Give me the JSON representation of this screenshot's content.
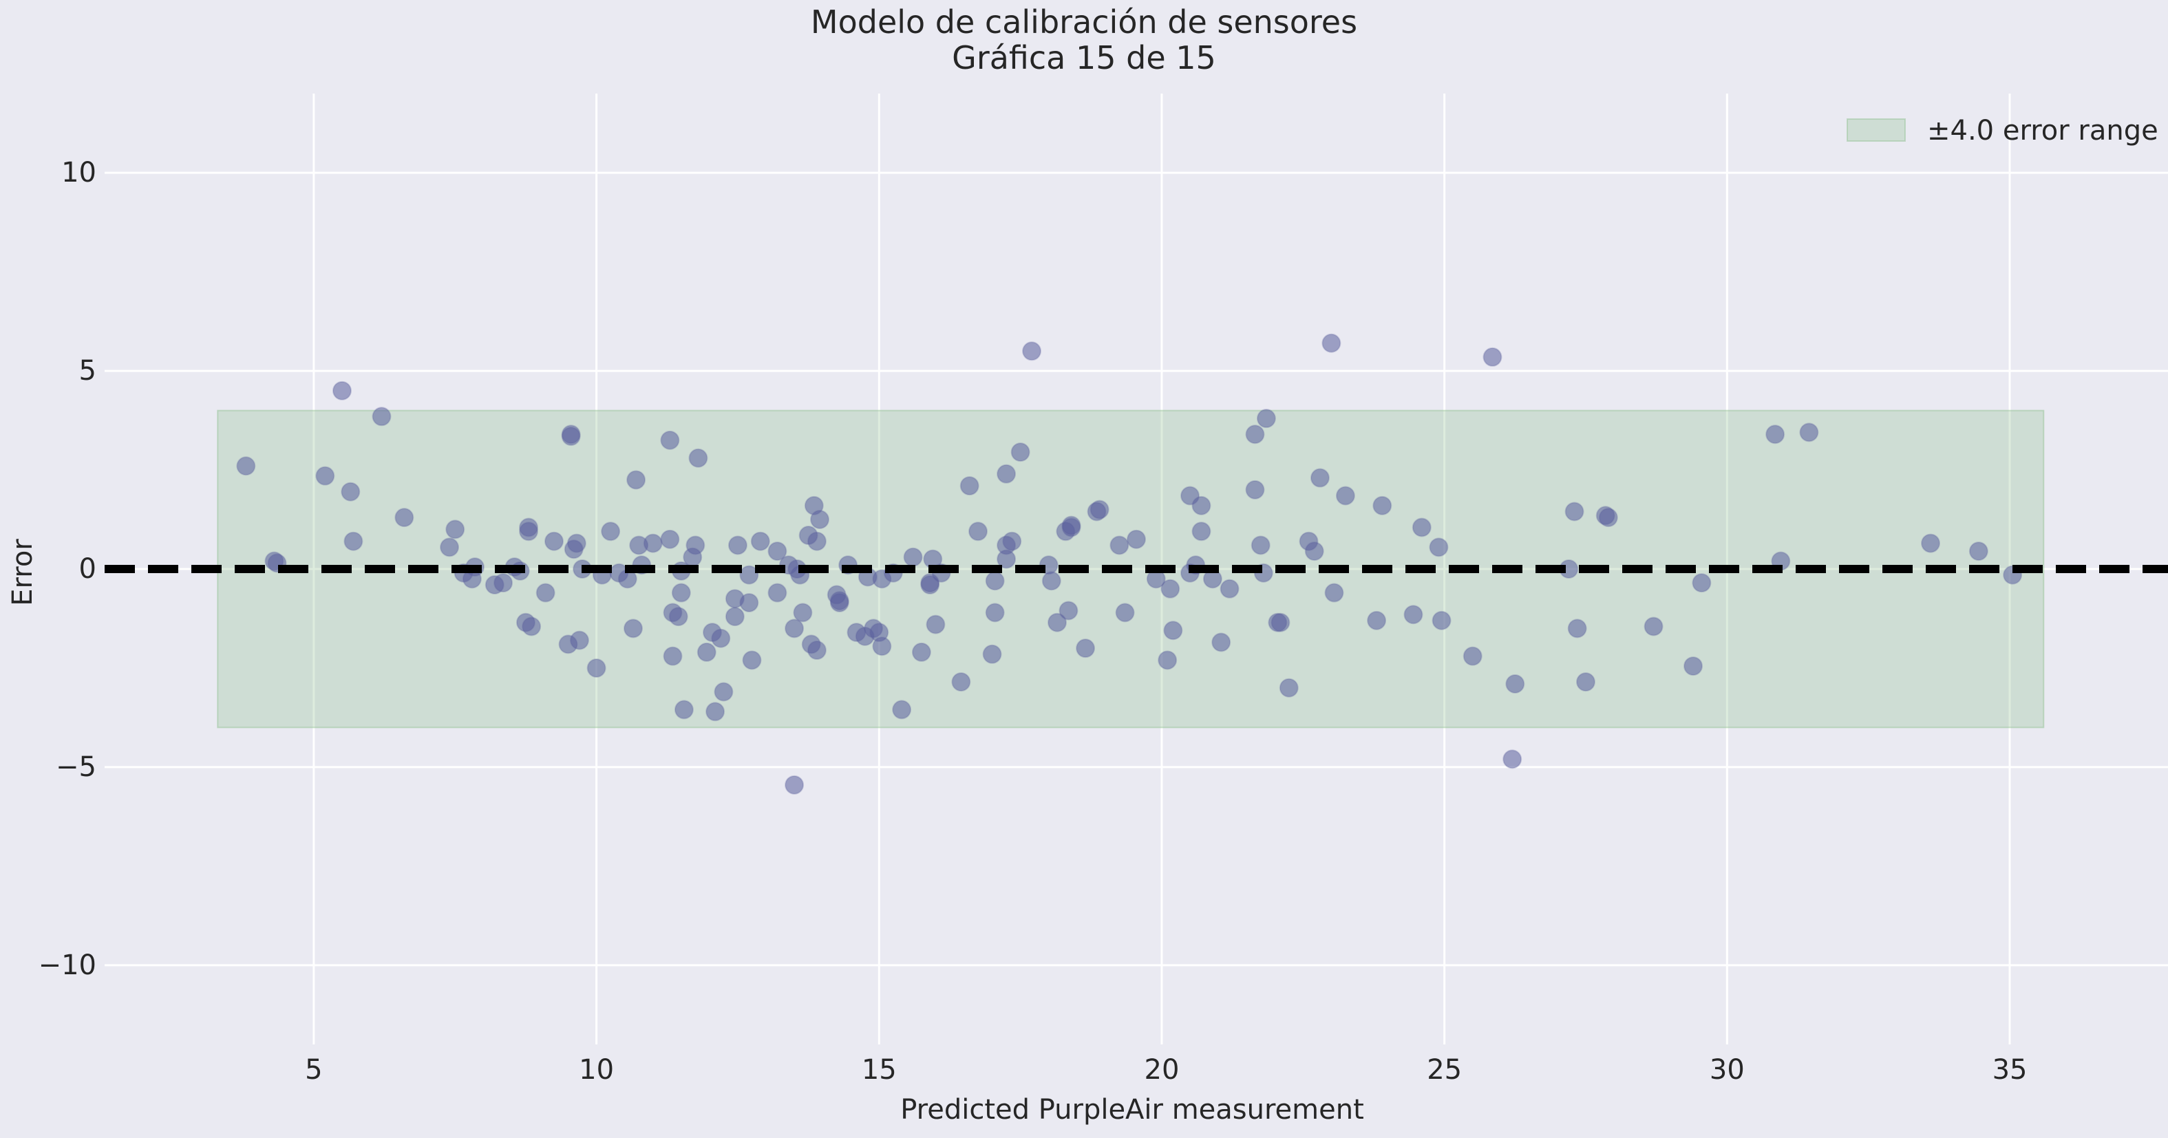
{
  "chart_data": {
    "type": "scatter",
    "title": "Modelo de calibración de sensores",
    "subtitle": "Gráfica 15 de 15",
    "xlabel": "Predicted PurpleAir measurement",
    "ylabel": "Error",
    "xlim": [
      1.3,
      37.8
    ],
    "ylim": [
      -12,
      12
    ],
    "xticks": [
      5,
      10,
      15,
      20,
      25,
      30,
      35
    ],
    "yticks": [
      -10,
      -5,
      0,
      5,
      10
    ],
    "ytick_labels": [
      "−10",
      "−5",
      "0",
      "5",
      "10"
    ],
    "grid": true,
    "legend_position": "top-right",
    "error_band": {
      "label": "±4.0 error range",
      "x_range": [
        3.3,
        35.6
      ],
      "y_range": [
        -4.0,
        4.0
      ],
      "color": "#90c090"
    },
    "zero_line": {
      "y": 0,
      "color": "#000000",
      "style": "dashed"
    },
    "colors": {
      "background": "#eaeaf2",
      "grid": "#ffffff",
      "points": "#5a5e9c"
    },
    "series": [
      {
        "points": [
          [
            3.8,
            2.6
          ],
          [
            4.3,
            0.2
          ],
          [
            4.35,
            0.15
          ],
          [
            5.2,
            2.35
          ],
          [
            5.5,
            4.5
          ],
          [
            5.65,
            1.95
          ],
          [
            5.7,
            0.7
          ],
          [
            6.2,
            3.85
          ],
          [
            6.6,
            1.3
          ],
          [
            7.4,
            0.55
          ],
          [
            7.5,
            1.0
          ],
          [
            7.65,
            -0.1
          ],
          [
            7.8,
            -0.25
          ],
          [
            7.85,
            0.05
          ],
          [
            8.2,
            -0.4
          ],
          [
            8.35,
            -0.35
          ],
          [
            8.55,
            0.05
          ],
          [
            8.65,
            -0.05
          ],
          [
            8.75,
            -1.35
          ],
          [
            8.8,
            1.05
          ],
          [
            8.8,
            0.95
          ],
          [
            8.85,
            -1.45
          ],
          [
            9.1,
            -0.6
          ],
          [
            9.25,
            0.7
          ],
          [
            9.5,
            -1.9
          ],
          [
            9.55,
            3.4
          ],
          [
            9.55,
            3.35
          ],
          [
            9.6,
            0.5
          ],
          [
            9.65,
            0.65
          ],
          [
            9.7,
            -1.8
          ],
          [
            9.75,
            0.0
          ],
          [
            10.0,
            -2.5
          ],
          [
            10.1,
            -0.15
          ],
          [
            10.25,
            0.95
          ],
          [
            10.4,
            -0.1
          ],
          [
            10.55,
            -0.25
          ],
          [
            10.65,
            -1.5
          ],
          [
            10.7,
            2.25
          ],
          [
            10.75,
            0.6
          ],
          [
            10.8,
            0.1
          ],
          [
            11.0,
            0.65
          ],
          [
            11.3,
            0.75
          ],
          [
            11.3,
            3.25
          ],
          [
            11.35,
            -1.1
          ],
          [
            11.35,
            -2.2
          ],
          [
            11.45,
            -1.2
          ],
          [
            11.5,
            -0.05
          ],
          [
            11.5,
            -0.6
          ],
          [
            11.55,
            -3.55
          ],
          [
            11.7,
            0.3
          ],
          [
            11.75,
            0.6
          ],
          [
            11.8,
            2.8
          ],
          [
            11.95,
            -2.1
          ],
          [
            12.05,
            -1.6
          ],
          [
            12.1,
            -3.6
          ],
          [
            12.2,
            -1.75
          ],
          [
            12.25,
            -3.1
          ],
          [
            12.45,
            -0.75
          ],
          [
            12.45,
            -1.2
          ],
          [
            12.5,
            0.6
          ],
          [
            12.7,
            -0.85
          ],
          [
            12.7,
            -0.15
          ],
          [
            12.75,
            -2.3
          ],
          [
            12.9,
            0.7
          ],
          [
            13.2,
            0.45
          ],
          [
            13.2,
            -0.6
          ],
          [
            13.4,
            0.1
          ],
          [
            13.5,
            -1.5
          ],
          [
            13.5,
            -5.45
          ],
          [
            13.55,
            0.0
          ],
          [
            13.6,
            -0.15
          ],
          [
            13.65,
            -1.1
          ],
          [
            13.75,
            0.85
          ],
          [
            13.8,
            -1.9
          ],
          [
            13.85,
            1.6
          ],
          [
            13.9,
            0.7
          ],
          [
            13.9,
            -2.05
          ],
          [
            13.95,
            1.25
          ],
          [
            14.25,
            -0.65
          ],
          [
            14.3,
            -0.85
          ],
          [
            14.3,
            -0.8
          ],
          [
            14.45,
            0.1
          ],
          [
            14.6,
            -1.6
          ],
          [
            14.75,
            -1.7
          ],
          [
            14.8,
            -0.2
          ],
          [
            14.9,
            -1.5
          ],
          [
            15.0,
            -1.6
          ],
          [
            15.05,
            -1.95
          ],
          [
            15.05,
            -0.25
          ],
          [
            15.25,
            -0.1
          ],
          [
            15.4,
            -3.55
          ],
          [
            15.6,
            0.3
          ],
          [
            15.75,
            -2.1
          ],
          [
            15.9,
            -0.4
          ],
          [
            15.9,
            -0.35
          ],
          [
            15.95,
            0.25
          ],
          [
            16.0,
            -1.4
          ],
          [
            16.1,
            -0.1
          ],
          [
            16.45,
            -2.85
          ],
          [
            16.6,
            2.1
          ],
          [
            16.75,
            0.95
          ],
          [
            17.0,
            -2.15
          ],
          [
            17.05,
            -1.1
          ],
          [
            17.05,
            -0.3
          ],
          [
            17.25,
            0.6
          ],
          [
            17.25,
            2.4
          ],
          [
            17.25,
            0.25
          ],
          [
            17.35,
            0.7
          ],
          [
            17.5,
            2.95
          ],
          [
            17.7,
            5.5
          ],
          [
            18.0,
            0.1
          ],
          [
            18.05,
            -0.3
          ],
          [
            18.15,
            -1.35
          ],
          [
            18.3,
            0.95
          ],
          [
            18.35,
            -1.05
          ],
          [
            18.4,
            1.05
          ],
          [
            18.4,
            1.1
          ],
          [
            18.65,
            -2.0
          ],
          [
            18.85,
            1.45
          ],
          [
            18.9,
            1.5
          ],
          [
            19.25,
            0.6
          ],
          [
            19.35,
            -1.1
          ],
          [
            19.55,
            0.75
          ],
          [
            19.9,
            -0.25
          ],
          [
            20.1,
            -2.3
          ],
          [
            20.15,
            -0.5
          ],
          [
            20.2,
            -1.55
          ],
          [
            20.5,
            -0.1
          ],
          [
            20.5,
            1.85
          ],
          [
            20.6,
            0.1
          ],
          [
            20.7,
            1.6
          ],
          [
            20.7,
            0.95
          ],
          [
            20.9,
            -0.25
          ],
          [
            21.05,
            -1.85
          ],
          [
            21.2,
            -0.5
          ],
          [
            21.65,
            2.0
          ],
          [
            21.65,
            3.4
          ],
          [
            21.75,
            0.6
          ],
          [
            21.8,
            -0.1
          ],
          [
            21.85,
            3.8
          ],
          [
            22.05,
            -1.35
          ],
          [
            22.1,
            -1.35
          ],
          [
            22.25,
            -3.0
          ],
          [
            22.6,
            0.7
          ],
          [
            22.7,
            0.45
          ],
          [
            22.8,
            2.3
          ],
          [
            23.0,
            5.7
          ],
          [
            23.05,
            -0.6
          ],
          [
            23.25,
            1.85
          ],
          [
            23.8,
            -1.3
          ],
          [
            23.9,
            1.6
          ],
          [
            24.45,
            -1.15
          ],
          [
            24.6,
            1.05
          ],
          [
            24.9,
            0.55
          ],
          [
            24.95,
            -1.3
          ],
          [
            25.5,
            -2.2
          ],
          [
            25.85,
            5.35
          ],
          [
            26.2,
            -4.8
          ],
          [
            26.25,
            -2.9
          ],
          [
            27.2,
            0.0
          ],
          [
            27.3,
            1.45
          ],
          [
            27.35,
            -1.5
          ],
          [
            27.5,
            -2.85
          ],
          [
            27.85,
            1.35
          ],
          [
            27.9,
            1.3
          ],
          [
            28.7,
            -1.45
          ],
          [
            29.4,
            -2.45
          ],
          [
            29.55,
            -0.35
          ],
          [
            30.85,
            3.4
          ],
          [
            30.95,
            0.2
          ],
          [
            31.45,
            3.45
          ],
          [
            33.6,
            0.65
          ],
          [
            34.45,
            0.45
          ],
          [
            35.05,
            -0.15
          ]
        ]
      }
    ]
  }
}
